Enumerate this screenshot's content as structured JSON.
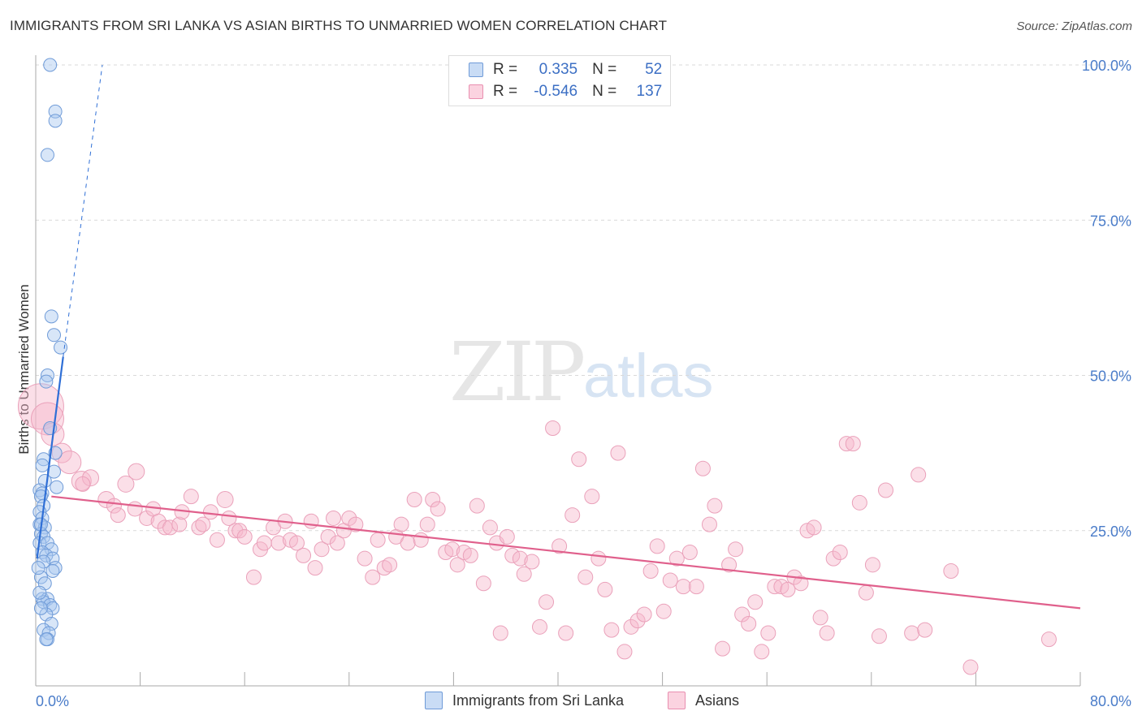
{
  "header": {
    "title": "IMMIGRANTS FROM SRI LANKA VS ASIAN BIRTHS TO UNMARRIED WOMEN CORRELATION CHART",
    "source": "Source: ZipAtlas.com"
  },
  "watermark": {
    "zip": "ZIP",
    "atlas": "atlas"
  },
  "legend": {
    "r_label": "R =",
    "n_label": "N =",
    "series1": {
      "r": "0.335",
      "n": "52",
      "color": "#a8c8f0"
    },
    "series2": {
      "r": "-0.546",
      "n": "137",
      "color": "#f6b8cc"
    }
  },
  "bottom_legend": {
    "series1": "Immigrants from Sri Lanka",
    "series2": "Asians"
  },
  "chart_data": {
    "type": "scatter",
    "title": "IMMIGRANTS FROM SRI LANKA VS ASIAN BIRTHS TO UNMARRIED WOMEN CORRELATION CHART",
    "xlabel": "",
    "ylabel": "Births to Unmarried Women",
    "xlim": [
      0,
      80
    ],
    "ylim": [
      0,
      100
    ],
    "x_tick_labels": [
      "0.0%",
      "80.0%"
    ],
    "y_tick_labels": [
      "25.0%",
      "50.0%",
      "75.0%",
      "100.0%"
    ],
    "y_ticks": [
      25,
      50,
      75,
      100
    ],
    "grid": true,
    "series": [
      {
        "name": "Immigrants from Sri Lanka",
        "color": "#a8c8f0",
        "line_color": "#2f6fd6",
        "trend": {
          "x": [
            0.1,
            2.1
          ],
          "y": [
            20.5,
            53.0
          ],
          "dashed_to": [
            5.1,
            100
          ]
        },
        "points": [
          [
            1.1,
            100
          ],
          [
            1.5,
            92.5
          ],
          [
            1.5,
            91
          ],
          [
            0.9,
            85.5
          ],
          [
            1.2,
            59.5
          ],
          [
            1.4,
            56.5
          ],
          [
            1.9,
            54.5
          ],
          [
            0.9,
            50
          ],
          [
            0.8,
            49
          ],
          [
            1.1,
            41.5
          ],
          [
            1.5,
            37.5
          ],
          [
            0.6,
            36.5
          ],
          [
            0.5,
            35.5
          ],
          [
            1.4,
            34.5
          ],
          [
            0.7,
            33
          ],
          [
            1.6,
            32
          ],
          [
            0.3,
            31.5
          ],
          [
            0.5,
            31
          ],
          [
            0.4,
            30.5
          ],
          [
            0.6,
            29
          ],
          [
            0.3,
            28
          ],
          [
            0.5,
            27
          ],
          [
            0.3,
            26
          ],
          [
            0.7,
            25.5
          ],
          [
            0.4,
            24.5
          ],
          [
            0.6,
            24
          ],
          [
            0.3,
            23
          ],
          [
            0.9,
            23
          ],
          [
            1.2,
            22
          ],
          [
            0.5,
            21.5
          ],
          [
            0.8,
            21
          ],
          [
            1.3,
            20.5
          ],
          [
            0.6,
            20
          ],
          [
            1.5,
            19
          ],
          [
            1.3,
            18.5
          ],
          [
            0.4,
            17.5
          ],
          [
            0.7,
            16.5
          ],
          [
            0.5,
            14
          ],
          [
            0.9,
            14
          ],
          [
            0.6,
            13.5
          ],
          [
            1.1,
            13
          ],
          [
            1.3,
            12.5
          ],
          [
            0.8,
            11.5
          ],
          [
            1.2,
            10
          ],
          [
            0.6,
            9
          ],
          [
            1.0,
            8.5
          ],
          [
            0.9,
            7.5
          ],
          [
            0.8,
            7.5
          ],
          [
            0.3,
            15
          ],
          [
            0.4,
            12.5
          ],
          [
            0.2,
            19
          ],
          [
            0.4,
            26
          ]
        ]
      },
      {
        "name": "Asians",
        "color": "#f6b8cc",
        "line_color": "#e0608c",
        "trend": {
          "x": [
            1.2,
            80
          ],
          "y": [
            30.5,
            12.5
          ]
        },
        "points": [
          [
            0.4,
            45,
            28
          ],
          [
            0.9,
            43,
            20
          ],
          [
            1.3,
            40.5,
            14
          ],
          [
            2.0,
            37.5,
            12
          ],
          [
            2.6,
            36,
            14
          ],
          [
            3.5,
            33,
            12
          ],
          [
            4.2,
            33.5,
            10
          ],
          [
            3.6,
            32.5,
            9
          ],
          [
            7.7,
            34.5,
            10
          ],
          [
            6.9,
            32.5,
            10
          ],
          [
            5.4,
            30,
            10
          ],
          [
            6.0,
            29,
            9
          ],
          [
            6.3,
            27.5,
            9
          ],
          [
            7.6,
            28.5,
            9
          ],
          [
            8.5,
            27,
            9
          ],
          [
            9.0,
            28.5,
            9
          ],
          [
            9.4,
            26.5,
            9
          ],
          [
            9.9,
            25.5,
            9
          ],
          [
            10.3,
            25.5,
            9
          ],
          [
            11.0,
            26,
            9
          ],
          [
            11.9,
            30.5,
            9
          ],
          [
            11.2,
            28,
            9
          ],
          [
            12.5,
            25.5,
            9
          ],
          [
            12.8,
            26,
            9
          ],
          [
            13.4,
            28,
            9
          ],
          [
            13.9,
            23.5,
            9
          ],
          [
            14.5,
            30,
            10
          ],
          [
            14.8,
            27,
            9
          ],
          [
            15.3,
            25,
            9
          ],
          [
            15.6,
            25,
            9
          ],
          [
            16.0,
            24,
            9
          ],
          [
            16.7,
            17.5,
            9
          ],
          [
            17.2,
            22,
            9
          ],
          [
            17.5,
            23,
            9
          ],
          [
            18.2,
            25.5,
            9
          ],
          [
            18.6,
            23,
            9
          ],
          [
            19.1,
            26.5,
            9
          ],
          [
            19.5,
            23.5,
            9
          ],
          [
            20.0,
            23,
            9
          ],
          [
            20.5,
            21,
            9
          ],
          [
            21.1,
            26.5,
            9
          ],
          [
            21.4,
            19,
            9
          ],
          [
            21.9,
            22,
            9
          ],
          [
            22.4,
            24,
            9
          ],
          [
            22.8,
            27,
            9
          ],
          [
            23.1,
            23,
            9
          ],
          [
            23.6,
            25,
            9
          ],
          [
            24.0,
            27,
            9
          ],
          [
            24.5,
            26,
            9
          ],
          [
            25.2,
            20.5,
            9
          ],
          [
            25.8,
            17.5,
            9
          ],
          [
            26.2,
            23.5,
            9
          ],
          [
            26.7,
            19,
            9
          ],
          [
            27.1,
            19.5,
            9
          ],
          [
            27.6,
            24,
            9
          ],
          [
            28.0,
            26,
            9
          ],
          [
            28.5,
            23,
            9
          ],
          [
            29.0,
            30,
            9
          ],
          [
            29.5,
            23.5,
            9
          ],
          [
            30.0,
            26,
            9
          ],
          [
            30.4,
            30,
            9
          ],
          [
            30.8,
            28.5,
            9
          ],
          [
            31.4,
            21.5,
            9
          ],
          [
            31.9,
            22,
            9
          ],
          [
            32.3,
            19.5,
            9
          ],
          [
            32.8,
            21.5,
            9
          ],
          [
            33.3,
            21,
            9
          ],
          [
            33.8,
            29,
            9
          ],
          [
            34.3,
            16.5,
            9
          ],
          [
            34.8,
            25.5,
            9
          ],
          [
            35.3,
            23,
            9
          ],
          [
            35.6,
            8.5,
            9
          ],
          [
            36.1,
            24,
            9
          ],
          [
            36.5,
            21,
            9
          ],
          [
            37.1,
            20.5,
            9
          ],
          [
            37.4,
            18,
            9
          ],
          [
            38.0,
            20,
            9
          ],
          [
            38.6,
            9.5,
            9
          ],
          [
            39.1,
            13.5,
            9
          ],
          [
            39.6,
            41.5,
            9
          ],
          [
            40.1,
            22.5,
            9
          ],
          [
            40.6,
            8.5,
            9
          ],
          [
            41.1,
            27.5,
            9
          ],
          [
            41.6,
            36.5,
            9
          ],
          [
            42.1,
            17.5,
            9
          ],
          [
            42.6,
            30.5,
            9
          ],
          [
            43.1,
            20.5,
            9
          ],
          [
            43.6,
            15.5,
            9
          ],
          [
            44.1,
            9,
            9
          ],
          [
            44.6,
            37.5,
            9
          ],
          [
            45.1,
            5.5,
            9
          ],
          [
            45.6,
            9.5,
            9
          ],
          [
            46.1,
            10.5,
            9
          ],
          [
            46.6,
            11.5,
            9
          ],
          [
            47.1,
            18.5,
            9
          ],
          [
            47.6,
            22.5,
            9
          ],
          [
            48.1,
            12,
            9
          ],
          [
            48.6,
            17,
            9
          ],
          [
            49.1,
            20.5,
            9
          ],
          [
            49.6,
            16,
            9
          ],
          [
            50.1,
            21.5,
            9
          ],
          [
            50.6,
            16,
            9
          ],
          [
            51.1,
            35,
            9
          ],
          [
            51.6,
            26,
            9
          ],
          [
            52.0,
            29,
            9
          ],
          [
            52.6,
            6,
            9
          ],
          [
            53.1,
            19.5,
            9
          ],
          [
            53.6,
            22,
            9
          ],
          [
            54.1,
            11.5,
            9
          ],
          [
            54.6,
            10,
            9
          ],
          [
            55.1,
            13.5,
            9
          ],
          [
            55.6,
            5.5,
            9
          ],
          [
            56.1,
            8.5,
            9
          ],
          [
            56.6,
            16,
            9
          ],
          [
            57.1,
            16,
            9
          ],
          [
            57.6,
            15.5,
            9
          ],
          [
            58.1,
            17.5,
            9
          ],
          [
            58.6,
            16.5,
            9
          ],
          [
            59.1,
            25,
            9
          ],
          [
            59.6,
            25.5,
            9
          ],
          [
            60.1,
            11,
            9
          ],
          [
            60.6,
            8.5,
            9
          ],
          [
            61.1,
            20.5,
            9
          ],
          [
            61.6,
            21.5,
            9
          ],
          [
            62.1,
            39,
            9
          ],
          [
            62.6,
            39,
            9
          ],
          [
            63.1,
            29.5,
            9
          ],
          [
            63.6,
            15,
            9
          ],
          [
            64.1,
            19.5,
            9
          ],
          [
            64.6,
            8,
            9
          ],
          [
            65.1,
            31.5,
            9
          ],
          [
            67.1,
            8.5,
            9
          ],
          [
            67.6,
            34,
            9
          ],
          [
            68.1,
            9,
            9
          ],
          [
            70.1,
            18.5,
            9
          ],
          [
            71.6,
            3,
            9
          ],
          [
            77.6,
            7.5,
            9
          ]
        ]
      }
    ]
  }
}
